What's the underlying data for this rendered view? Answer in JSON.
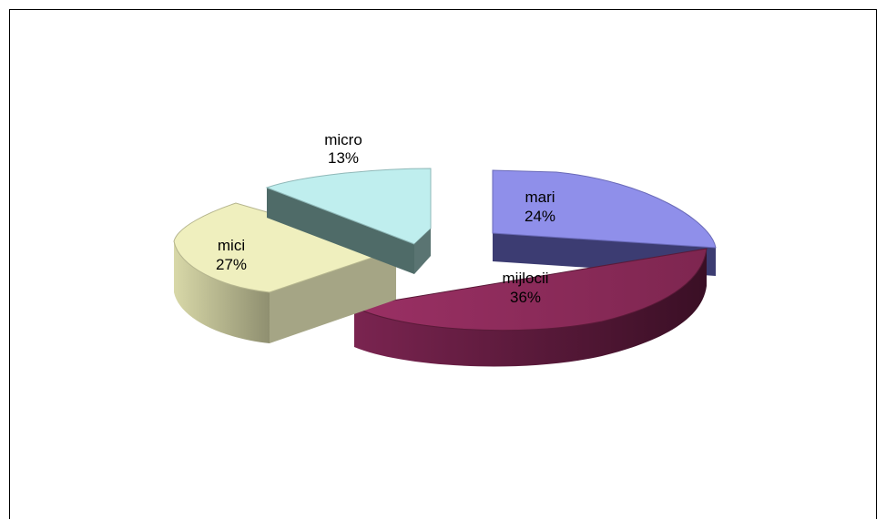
{
  "chart_data": {
    "type": "pie",
    "title": "",
    "style": "3d-exploded",
    "slices": [
      {
        "label": "mari",
        "pct_label": "24%",
        "value": 24,
        "top_color": "#8f8fea",
        "side_color": "#3c3c70"
      },
      {
        "label": "mijlocii",
        "pct_label": "36%",
        "value": 36,
        "top_color": "#8a2c58",
        "side_color": "#5e1c3b"
      },
      {
        "label": "mici",
        "pct_label": "27%",
        "value": 27,
        "top_color": "#efefbe",
        "side_color": "#a8a888"
      },
      {
        "label": "micro",
        "pct_label": "13%",
        "value": 13,
        "top_color": "#bfeeee",
        "side_color": "#4f6a68"
      }
    ]
  }
}
